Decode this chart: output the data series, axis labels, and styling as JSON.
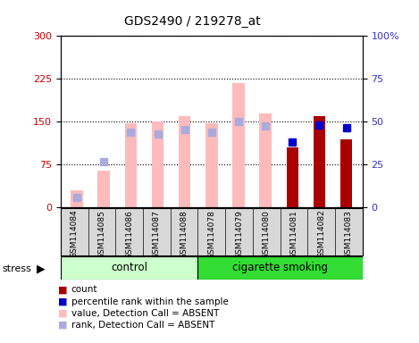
{
  "title": "GDS2490 / 219278_at",
  "samples": [
    "GSM114084",
    "GSM114085",
    "GSM114086",
    "GSM114087",
    "GSM114088",
    "GSM114078",
    "GSM114079",
    "GSM114080",
    "GSM114081",
    "GSM114082",
    "GSM114083"
  ],
  "value_absent": [
    30,
    65,
    148,
    150,
    160,
    148,
    218,
    165,
    null,
    160,
    null
  ],
  "rank_absent": [
    17,
    80,
    132,
    128,
    137,
    132,
    150,
    142,
    null,
    null,
    null
  ],
  "count_present": [
    null,
    null,
    null,
    null,
    null,
    null,
    null,
    null,
    105,
    160,
    120
  ],
  "percentile_present": [
    null,
    null,
    null,
    null,
    null,
    null,
    null,
    null,
    115,
    145,
    140
  ],
  "ylim_left": [
    0,
    300
  ],
  "ylim_right": [
    0,
    100
  ],
  "yticks_left": [
    0,
    75,
    150,
    225,
    300
  ],
  "yticks_right": [
    0,
    25,
    50,
    75,
    100
  ],
  "ytick_right_labels": [
    "0",
    "25",
    "50",
    "75",
    "100%"
  ],
  "ylabel_left_color": "#cc0000",
  "ylabel_right_color": "#3333cc",
  "bar_color_absent": "#ffbbbb",
  "rank_absent_color": "#aaaadd",
  "bar_color_present": "#aa0000",
  "rank_present_color": "#0000cc",
  "group_control_color": "#ccffcc",
  "group_smoking_color": "#33dd33",
  "stress_label": "stress",
  "control_label": "control",
  "smoking_label": "cigarette smoking",
  "n_control": 5,
  "n_total": 11,
  "legend_items": [
    {
      "label": "count",
      "color": "#aa0000"
    },
    {
      "label": "percentile rank within the sample",
      "color": "#0000cc"
    },
    {
      "label": "value, Detection Call = ABSENT",
      "color": "#ffbbbb"
    },
    {
      "label": "rank, Detection Call = ABSENT",
      "color": "#aaaadd"
    }
  ]
}
